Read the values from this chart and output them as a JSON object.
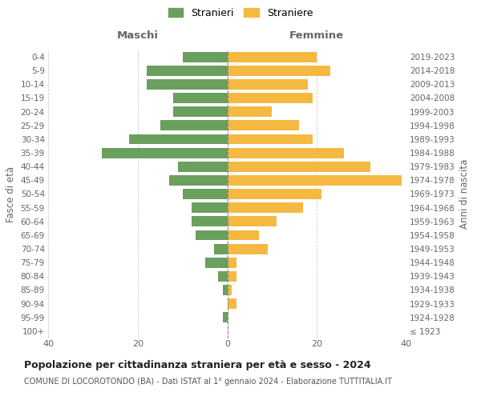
{
  "age_groups": [
    "100+",
    "95-99",
    "90-94",
    "85-89",
    "80-84",
    "75-79",
    "70-74",
    "65-69",
    "60-64",
    "55-59",
    "50-54",
    "45-49",
    "40-44",
    "35-39",
    "30-34",
    "25-29",
    "20-24",
    "15-19",
    "10-14",
    "5-9",
    "0-4"
  ],
  "birth_years": [
    "≤ 1923",
    "1924-1928",
    "1929-1933",
    "1934-1938",
    "1939-1943",
    "1944-1948",
    "1949-1953",
    "1954-1958",
    "1959-1963",
    "1964-1968",
    "1969-1973",
    "1974-1978",
    "1979-1983",
    "1984-1988",
    "1989-1993",
    "1994-1998",
    "1999-2003",
    "2004-2008",
    "2009-2013",
    "2014-2018",
    "2019-2023"
  ],
  "males": [
    0,
    1,
    0,
    1,
    2,
    5,
    3,
    7,
    8,
    8,
    10,
    13,
    11,
    28,
    22,
    15,
    12,
    12,
    18,
    18,
    10
  ],
  "females": [
    0,
    0,
    2,
    1,
    2,
    2,
    9,
    7,
    11,
    17,
    21,
    39,
    32,
    26,
    19,
    16,
    10,
    19,
    18,
    23,
    20
  ],
  "male_color": "#6a9f5e",
  "female_color": "#f5b942",
  "title": "Popolazione per cittadinanza straniera per età e sesso - 2024",
  "subtitle": "COMUNE DI LOCOROTONDO (BA) - Dati ISTAT al 1° gennaio 2024 - Elaborazione TUTTITALIA.IT",
  "xlabel_left": "Maschi",
  "xlabel_right": "Femmine",
  "ylabel_left": "Fasce di età",
  "ylabel_right": "Anni di nascita",
  "legend_male": "Stranieri",
  "legend_female": "Straniere",
  "xlim": 40,
  "background_color": "#ffffff",
  "grid_color": "#cccccc"
}
